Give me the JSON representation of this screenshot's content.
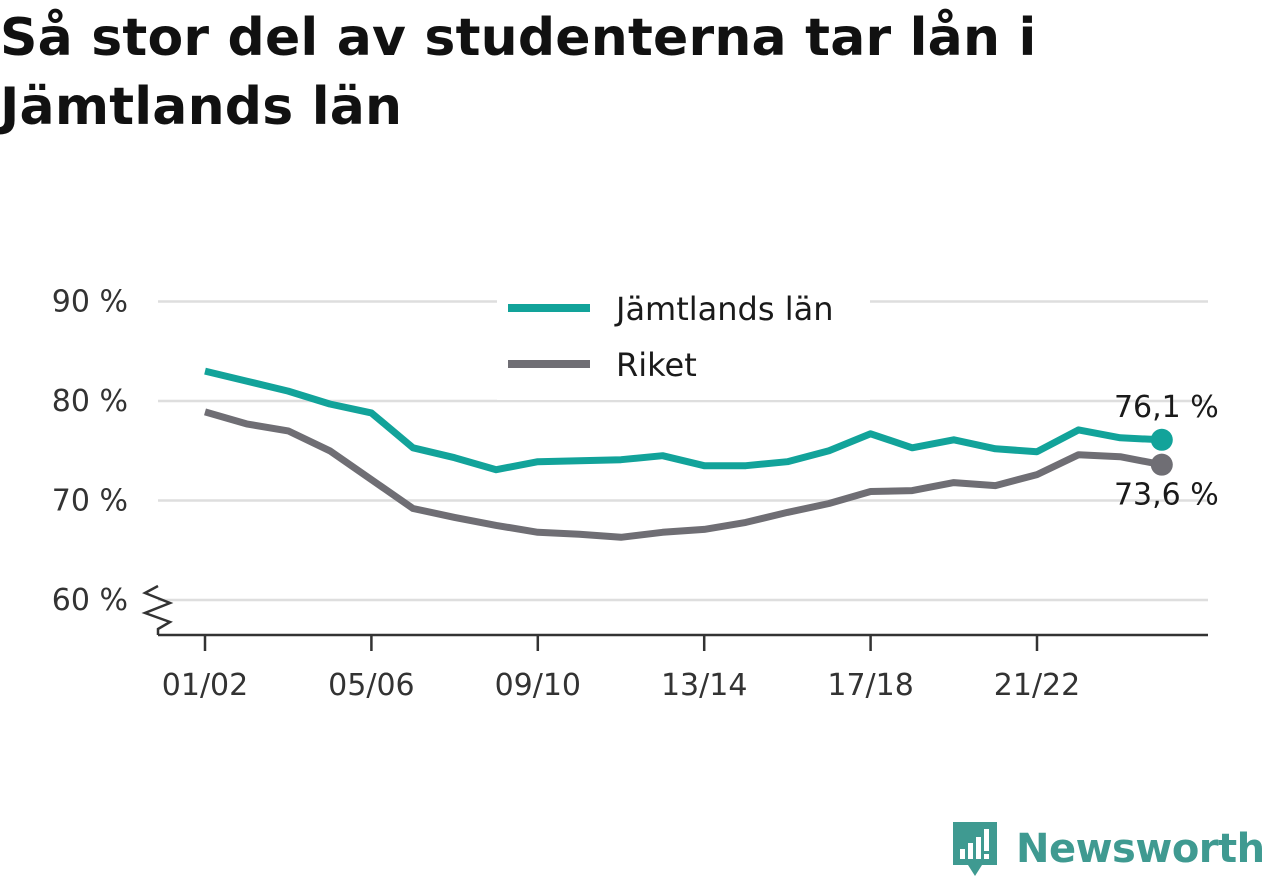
{
  "chart_data": {
    "type": "line",
    "title": "Så stor del av studenterna tar lån i Jämtlands län",
    "xlabel": "",
    "ylabel": "",
    "x_tick_labels": [
      "01/02",
      "05/06",
      "09/10",
      "13/14",
      "17/18",
      "21/22"
    ],
    "y_tick_labels": [
      "60 %",
      "70 %",
      "80 %",
      "90 %"
    ],
    "y_ticks": [
      60,
      70,
      80,
      90
    ],
    "ylim": [
      60,
      90
    ],
    "y_axis_break": true,
    "grid": true,
    "legend_position": "top-center",
    "x": [
      "01/02",
      "02/03",
      "03/04",
      "04/05",
      "05/06",
      "06/07",
      "07/08",
      "08/09",
      "09/10",
      "10/11",
      "11/12",
      "12/13",
      "13/14",
      "14/15",
      "15/16",
      "16/17",
      "17/18",
      "18/19",
      "19/20",
      "20/21",
      "21/22",
      "22/23",
      "23/24",
      "24/25"
    ],
    "series": [
      {
        "name": "Jämtlands län",
        "color": "#12a39a",
        "values": [
          83.0,
          82.0,
          81.0,
          79.7,
          78.8,
          75.3,
          74.3,
          73.1,
          73.9,
          74.0,
          74.1,
          74.5,
          73.5,
          73.5,
          73.9,
          75.0,
          76.7,
          75.3,
          76.1,
          75.2,
          74.9,
          77.1,
          76.3,
          76.1
        ],
        "end_label": "76,1 %"
      },
      {
        "name": "Riket",
        "color": "#6f6e74",
        "values": [
          78.9,
          77.7,
          77.0,
          75.0,
          72.1,
          69.2,
          68.3,
          67.5,
          66.8,
          66.6,
          66.3,
          66.8,
          67.1,
          67.8,
          68.8,
          69.7,
          70.9,
          71.0,
          71.8,
          71.5,
          72.6,
          74.6,
          74.4,
          73.6
        ],
        "end_label": "73,6 %"
      }
    ]
  },
  "brand": {
    "name": "Newsworthy",
    "color": "#3f9a91",
    "icon": "newsworthy-logo-icon"
  }
}
